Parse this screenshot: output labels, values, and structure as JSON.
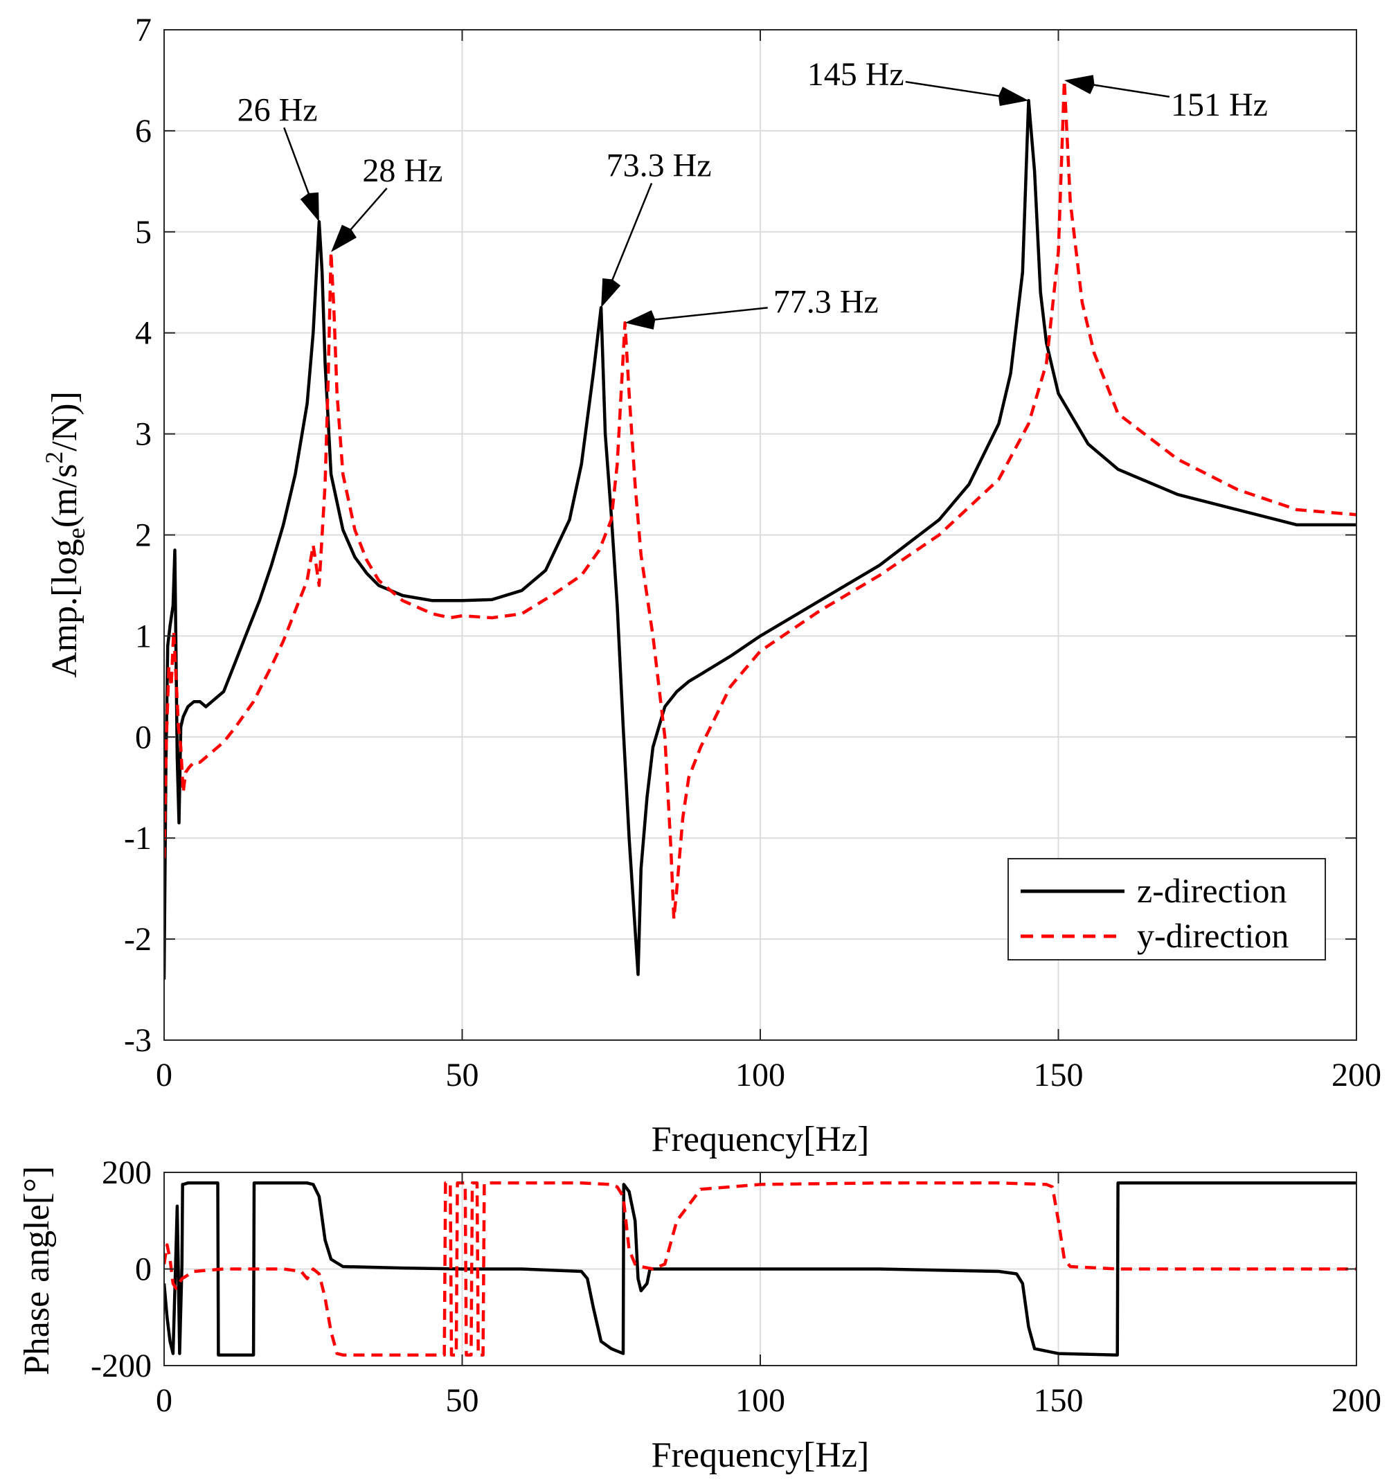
{
  "chart_data": [
    {
      "type": "line",
      "id": "amplitude",
      "xlabel": "Frequency[Hz]",
      "ylabel": {
        "main": "Amp.[log",
        "sub": "e",
        "mid": "(m/s",
        "sup": "2",
        "end": "/N)]"
      },
      "xlim": [
        0,
        200
      ],
      "ylim": [
        -3,
        7
      ],
      "xticks": [
        "0",
        "50",
        "100",
        "150",
        "200"
      ],
      "yticks": [
        "-3",
        "-2",
        "-1",
        "0",
        "1",
        "2",
        "3",
        "4",
        "5",
        "6",
        "7"
      ],
      "grid": true,
      "legend_position": "bottom-right",
      "series": [
        {
          "name": "z-direction",
          "color": "#000000",
          "style": "solid",
          "x": [
            0,
            0.3,
            0.6,
            1,
            1.5,
            1.8,
            2.2,
            2.5,
            2.8,
            3.2,
            4,
            5,
            6,
            7,
            8,
            9,
            10,
            12,
            14,
            16,
            18,
            20,
            22,
            24,
            25,
            26,
            26.5,
            27,
            28,
            30,
            32,
            34,
            36,
            40,
            45,
            50,
            55,
            60,
            64,
            68,
            70,
            72,
            73.3,
            74,
            75,
            76,
            77,
            78,
            79,
            79.5,
            80,
            81,
            82,
            84,
            86,
            88,
            90,
            95,
            100,
            110,
            120,
            130,
            135,
            140,
            142,
            144,
            145,
            146,
            147,
            148,
            150,
            155,
            160,
            170,
            180,
            190,
            200
          ],
          "y": [
            -2.4,
            -0.3,
            0.9,
            1.1,
            1.3,
            1.85,
            -0.2,
            -0.85,
            0.1,
            0.2,
            0.3,
            0.35,
            0.35,
            0.3,
            0.35,
            0.4,
            0.45,
            0.75,
            1.05,
            1.35,
            1.7,
            2.1,
            2.6,
            3.3,
            4.0,
            5.1,
            4.6,
            3.7,
            2.6,
            2.05,
            1.78,
            1.62,
            1.5,
            1.4,
            1.35,
            1.35,
            1.36,
            1.45,
            1.65,
            2.15,
            2.7,
            3.6,
            4.25,
            3.0,
            2.2,
            1.3,
            0.1,
            -1.0,
            -1.9,
            -2.35,
            -1.3,
            -0.6,
            -0.1,
            0.3,
            0.45,
            0.55,
            0.62,
            0.8,
            1.0,
            1.35,
            1.7,
            2.15,
            2.5,
            3.1,
            3.6,
            4.6,
            6.3,
            5.6,
            4.4,
            3.9,
            3.4,
            2.9,
            2.65,
            2.4,
            2.25,
            2.1,
            2.1
          ]
        },
        {
          "name": "y-direction",
          "color": "#ff0000",
          "style": "dashed",
          "x": [
            0,
            0.4,
            0.8,
            1.2,
            1.6,
            2.0,
            2.4,
            2.8,
            3.2,
            3.6,
            4.2,
            5,
            6,
            8,
            10,
            12,
            15,
            18,
            20,
            22,
            24,
            25,
            26,
            27,
            27.5,
            28,
            28.5,
            29,
            30,
            32,
            34,
            36,
            40,
            45,
            48,
            50,
            55,
            60,
            65,
            70,
            73,
            75,
            76,
            77.3,
            78,
            79,
            80,
            82,
            84,
            85,
            85.5,
            86,
            87,
            88,
            90,
            95,
            100,
            110,
            120,
            130,
            140,
            145,
            148,
            150,
            151,
            152,
            154,
            156,
            158,
            160,
            170,
            180,
            190,
            200
          ],
          "y": [
            -1.2,
            0.0,
            0.7,
            0.5,
            1.05,
            0.6,
            0.1,
            -0.1,
            -0.55,
            -0.35,
            -0.3,
            -0.25,
            -0.25,
            -0.15,
            -0.05,
            0.1,
            0.35,
            0.7,
            0.95,
            1.25,
            1.55,
            1.9,
            1.5,
            2.5,
            3.5,
            4.8,
            4.2,
            3.4,
            2.6,
            2.05,
            1.75,
            1.55,
            1.35,
            1.22,
            1.18,
            1.2,
            1.18,
            1.22,
            1.4,
            1.6,
            1.85,
            2.15,
            2.7,
            4.1,
            3.4,
            2.5,
            1.8,
            1.0,
            0.0,
            -1.1,
            -1.8,
            -1.5,
            -0.8,
            -0.4,
            -0.1,
            0.5,
            0.85,
            1.25,
            1.6,
            2.0,
            2.55,
            3.1,
            3.7,
            4.8,
            6.5,
            5.3,
            4.3,
            3.8,
            3.5,
            3.2,
            2.75,
            2.45,
            2.25,
            2.2
          ]
        }
      ],
      "annotations": [
        {
          "label": "26 Hz",
          "x": 26,
          "y": 5.1,
          "text_x": 19,
          "text_y": 6.1
        },
        {
          "label": "28 Hz",
          "x": 28,
          "y": 4.8,
          "text_x": 40,
          "text_y": 5.5
        },
        {
          "label": "73.3 Hz",
          "x": 73.3,
          "y": 4.25,
          "text_x": 83,
          "text_y": 5.55
        },
        {
          "label": "77.3 Hz",
          "x": 77.3,
          "y": 4.1,
          "text_x": 111,
          "text_y": 4.2
        },
        {
          "label": "145 Hz",
          "x": 145,
          "y": 6.3,
          "text_x": 116,
          "text_y": 6.45
        },
        {
          "label": "151 Hz",
          "x": 151,
          "y": 6.5,
          "text_x": 177,
          "text_y": 6.15
        }
      ]
    },
    {
      "type": "line",
      "id": "phase",
      "xlabel": "Frequency[Hz]",
      "ylabel": "Phase angle[°]",
      "xlim": [
        0,
        200
      ],
      "ylim": [
        -200,
        200
      ],
      "xticks": [
        "0",
        "50",
        "100",
        "150",
        "200"
      ],
      "yticks": [
        "-200",
        "0",
        "200"
      ],
      "grid": true,
      "series": [
        {
          "name": "z-direction",
          "color": "#000000",
          "style": "solid",
          "x": [
            0,
            0.5,
            1,
            1.5,
            2,
            2.2,
            2.4,
            2.6,
            3,
            3.1,
            3.2,
            4,
            9,
            9.1,
            15,
            15.1,
            24,
            25,
            26,
            27,
            28,
            30,
            40,
            50,
            60,
            70,
            71,
            72,
            73.3,
            75,
            77,
            77.1,
            78,
            79,
            79.5,
            80,
            81,
            81.5,
            90,
            100,
            120,
            140,
            143,
            144,
            145,
            146,
            150,
            159.9,
            160,
            170,
            180,
            200
          ],
          "y": [
            -30,
            -100,
            -150,
            -175,
            40,
            130,
            -20,
            -175,
            10,
            175,
            175,
            178,
            178,
            -178,
            -178,
            178,
            178,
            175,
            150,
            60,
            20,
            5,
            2,
            0,
            0,
            -5,
            -20,
            -80,
            -150,
            -165,
            -175,
            175,
            160,
            100,
            -20,
            -45,
            -30,
            0,
            0,
            0,
            0,
            -5,
            -10,
            -30,
            -120,
            -165,
            -175,
            -178,
            178,
            178,
            178,
            178
          ]
        },
        {
          "name": "y-direction",
          "color": "#ff0000",
          "style": "dashed",
          "x": [
            0,
            0.5,
            1,
            1.5,
            2,
            3,
            5,
            10,
            20,
            23,
            24,
            25,
            26,
            27,
            28,
            29,
            30,
            40,
            47,
            47.2,
            48,
            48.2,
            49,
            49.2,
            50.5,
            50.7,
            51.5,
            51.7,
            52.5,
            52.7,
            53.5,
            53.7,
            60,
            70,
            75,
            76,
            77,
            78,
            79,
            80,
            82,
            84,
            86,
            90,
            100,
            120,
            140,
            148,
            149,
            150,
            151,
            152,
            160,
            180,
            200
          ],
          "y": [
            10,
            50,
            20,
            -30,
            -40,
            -20,
            -5,
            0,
            0,
            -5,
            -20,
            0,
            -10,
            -60,
            -130,
            -175,
            -178,
            -178,
            -178,
            178,
            178,
            -178,
            -178,
            178,
            178,
            -178,
            -178,
            178,
            178,
            -178,
            -178,
            178,
            178,
            178,
            175,
            170,
            150,
            40,
            10,
            5,
            0,
            10,
            100,
            165,
            175,
            178,
            178,
            175,
            170,
            100,
            20,
            5,
            0,
            0,
            0
          ]
        }
      ]
    }
  ],
  "legend": {
    "items": [
      {
        "label": "z-direction",
        "color": "#000000",
        "style": "solid"
      },
      {
        "label": "y-direction",
        "color": "#ff0000",
        "style": "dashed"
      }
    ]
  }
}
